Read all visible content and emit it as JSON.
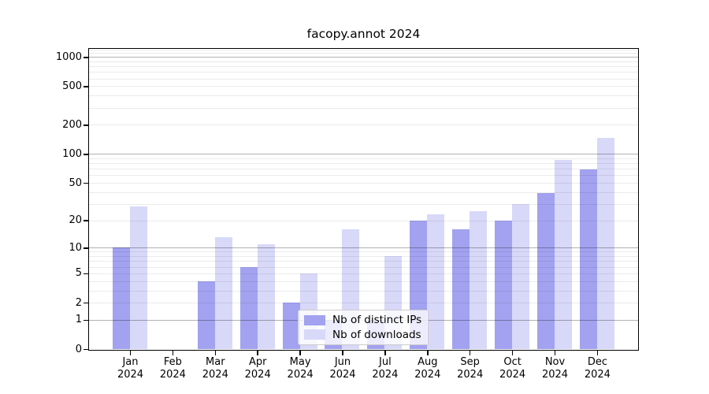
{
  "title": "facopy.annot 2024",
  "chart_data": {
    "type": "bar",
    "title": "facopy.annot 2024",
    "scale": "log1p",
    "categories": [
      "Jan",
      "Feb",
      "Mar",
      "Apr",
      "May",
      "Jun",
      "Jul",
      "Aug",
      "Sep",
      "Oct",
      "Nov",
      "Dec"
    ],
    "year": "2024",
    "series": [
      {
        "name": "Nb of distinct IPs",
        "color": "#a2a2f0",
        "values": [
          10,
          0,
          4,
          6,
          2,
          1,
          1,
          20,
          16,
          20,
          39,
          69
        ]
      },
      {
        "name": "Nb of downloads",
        "color": "#d8d8f8",
        "values": [
          28,
          0,
          13,
          11,
          5,
          16,
          8,
          23,
          25,
          30,
          86,
          146
        ]
      }
    ],
    "y_ticks": [
      0,
      1,
      2,
      5,
      10,
      20,
      50,
      100,
      200,
      500,
      1000
    ],
    "ylim": [
      0,
      1244
    ],
    "xlabel": "",
    "ylabel": "",
    "grid": "both",
    "legend_position": "lower center"
  }
}
